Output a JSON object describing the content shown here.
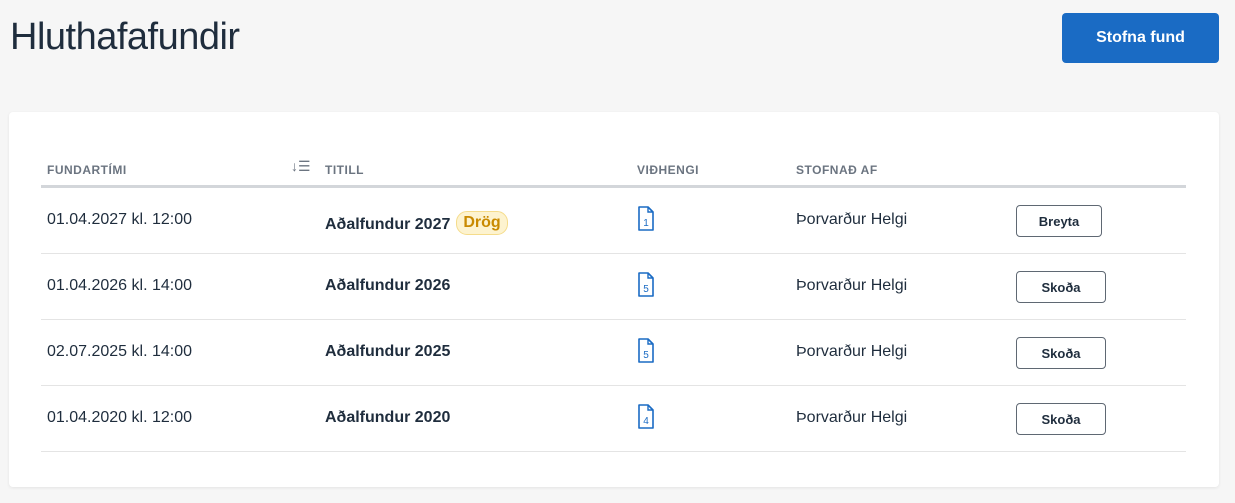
{
  "page": {
    "title": "Hluthafafundir",
    "create_button": "Stofna fund"
  },
  "table": {
    "columns": [
      "FUNDARTÍMI",
      "TITILL",
      "VIÐHENGI",
      "STOFNAÐ AF"
    ],
    "sort_icon": "sort-descending-icon",
    "rows": [
      {
        "time": "01.04.2027 kl. 12:00",
        "title": "Aðalfundur 2027",
        "badge": "Drög",
        "attachments": "1",
        "created_by": "Þorvarður Helgi",
        "action": "Breyta"
      },
      {
        "time": "01.04.2026 kl. 14:00",
        "title": "Aðalfundur 2026",
        "attachments": "5",
        "created_by": "Þorvarður Helgi",
        "action": "Skoða"
      },
      {
        "time": "02.07.2025 kl. 14:00",
        "title": "Aðalfundur 2025",
        "attachments": "5",
        "created_by": "Þorvarður Helgi",
        "action": "Skoða"
      },
      {
        "time": "01.04.2020 kl. 12:00",
        "title": "Aðalfundur 2020",
        "attachments": "4",
        "created_by": "Þorvarður Helgi",
        "action": "Skoða"
      }
    ]
  },
  "colors": {
    "accent": "#1a6bc4",
    "badge_bg": "#fdf3cf",
    "badge_text": "#c98a00"
  }
}
